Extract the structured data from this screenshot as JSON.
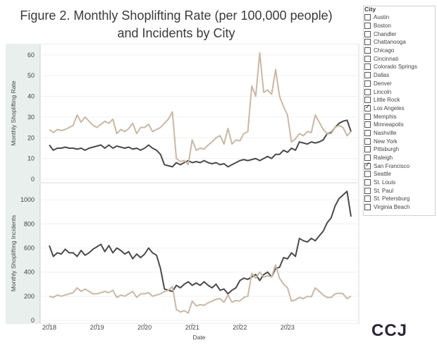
{
  "title_line1": "Figure 2. Monthly Shoplifting Rate (per 100,000 people)",
  "title_line2": "and Incidents by City",
  "legend": {
    "title": "City",
    "items": [
      {
        "label": "Austin",
        "checked": false
      },
      {
        "label": "Boston",
        "checked": false
      },
      {
        "label": "Chandler",
        "checked": false
      },
      {
        "label": "Chattanooga",
        "checked": false
      },
      {
        "label": "Chicago",
        "checked": false
      },
      {
        "label": "Cincinnati",
        "checked": false
      },
      {
        "label": "Colorado Springs",
        "checked": false
      },
      {
        "label": "Dallas",
        "checked": false
      },
      {
        "label": "Denver",
        "checked": false
      },
      {
        "label": "Lincoln",
        "checked": false
      },
      {
        "label": "Little Rock",
        "checked": false
      },
      {
        "label": "Los Angeles",
        "checked": true
      },
      {
        "label": "Memphis",
        "checked": false
      },
      {
        "label": "Minneapolis",
        "checked": false
      },
      {
        "label": "Nashville",
        "checked": false
      },
      {
        "label": "New York",
        "checked": false
      },
      {
        "label": "Pittsburgh",
        "checked": false
      },
      {
        "label": "Raleigh",
        "checked": false
      },
      {
        "label": "San Francisco",
        "checked": true
      },
      {
        "label": "Seattle",
        "checked": false
      },
      {
        "label": "St. Louis",
        "checked": false
      },
      {
        "label": "St. Paul",
        "checked": false
      },
      {
        "label": "St. Petersburg",
        "checked": false
      },
      {
        "label": "Virginia Beach",
        "checked": false
      }
    ]
  },
  "logo_text": "CCJ",
  "colors": {
    "panel_bg": "#e9efec",
    "los_angeles": "#4a4a4a",
    "san_francisco": "#c9b8a6"
  },
  "chart_data": [
    {
      "type": "line",
      "ylabel": "Monthly Shoplifting Rate",
      "xlabel": "",
      "ylim": [
        0,
        63
      ],
      "yticks": [
        0,
        10,
        20,
        30,
        40,
        50,
        60
      ],
      "x_start": "2018-01",
      "x_tick_labels": [
        "2018",
        "2019",
        "2020",
        "2021",
        "2022",
        "2023"
      ],
      "series": [
        {
          "name": "Los Angeles",
          "color": "#4a4a4a",
          "values": [
            16.5,
            14,
            15,
            15,
            15.5,
            15,
            15,
            14.5,
            15,
            14,
            15,
            15.5,
            16,
            16.5,
            15,
            16.5,
            15,
            16,
            15.5,
            15,
            15.5,
            14.5,
            15,
            14,
            15,
            16.5,
            15,
            14,
            12,
            7,
            6.5,
            6,
            8,
            7,
            8,
            9,
            8,
            8.5,
            8,
            9,
            8,
            7.5,
            8,
            7,
            7.5,
            6,
            7,
            8,
            9,
            9.5,
            9,
            9.5,
            10,
            9,
            10,
            11,
            10,
            12,
            12,
            14,
            13,
            15,
            14,
            18,
            17.5,
            17,
            18,
            17.5,
            18,
            19,
            22,
            22.5,
            25,
            27,
            28,
            28.5,
            23
          ]
        },
        {
          "name": "San Francisco",
          "color": "#c9b8a6",
          "values": [
            24,
            22.5,
            24,
            23.5,
            24,
            25,
            26,
            31,
            27.5,
            30,
            28,
            26,
            25,
            26.5,
            28,
            27,
            29,
            22,
            24,
            23,
            24.5,
            27,
            22,
            25,
            25,
            26.5,
            23,
            24,
            25,
            27,
            29,
            32.5,
            10,
            8.5,
            9,
            7,
            19,
            14,
            15,
            14.5,
            16.5,
            18,
            20,
            21,
            17,
            24.5,
            17,
            19,
            18.5,
            22,
            23,
            45,
            40,
            61,
            42,
            43,
            41,
            53,
            40,
            35,
            31,
            18,
            19.5,
            22,
            21,
            23,
            22.5,
            31,
            27.5,
            24,
            22,
            22,
            25,
            26,
            25,
            21,
            23
          ]
        }
      ]
    },
    {
      "type": "line",
      "ylabel": "Monthly Shoplifting Incidents",
      "xlabel": "Date",
      "ylim": [
        0,
        1100
      ],
      "yticks": [
        0,
        200,
        400,
        600,
        800,
        1000
      ],
      "x_start": "2018-01",
      "x_tick_labels": [
        "2018",
        "2019",
        "2020",
        "2021",
        "2022",
        "2023"
      ],
      "series": [
        {
          "name": "Los Angeles",
          "color": "#4a4a4a",
          "values": [
            620,
            530,
            560,
            550,
            590,
            560,
            560,
            530,
            580,
            540,
            560,
            590,
            610,
            630,
            570,
            620,
            560,
            600,
            580,
            550,
            570,
            510,
            550,
            520,
            550,
            600,
            560,
            540,
            430,
            260,
            250,
            240,
            290,
            270,
            300,
            320,
            290,
            310,
            290,
            320,
            290,
            270,
            300,
            250,
            260,
            220,
            250,
            270,
            330,
            350,
            340,
            360,
            380,
            330,
            380,
            400,
            360,
            430,
            440,
            520,
            510,
            560,
            530,
            680,
            660,
            650,
            680,
            660,
            700,
            740,
            810,
            850,
            950,
            1010,
            1040,
            1070,
            860
          ]
        },
        {
          "name": "San Francisco",
          "color": "#c9b8a6",
          "values": [
            200,
            190,
            210,
            200,
            210,
            220,
            230,
            270,
            240,
            260,
            240,
            220,
            220,
            230,
            240,
            230,
            250,
            190,
            210,
            200,
            220,
            240,
            190,
            220,
            220,
            230,
            200,
            210,
            220,
            240,
            250,
            280,
            90,
            70,
            80,
            60,
            160,
            120,
            130,
            125,
            145,
            160,
            175,
            180,
            150,
            210,
            150,
            165,
            160,
            190,
            200,
            390,
            350,
            400,
            360,
            370,
            360,
            460,
            350,
            300,
            270,
            160,
            170,
            190,
            180,
            200,
            195,
            270,
            240,
            210,
            190,
            190,
            220,
            225,
            220,
            180,
            200
          ]
        }
      ]
    }
  ]
}
